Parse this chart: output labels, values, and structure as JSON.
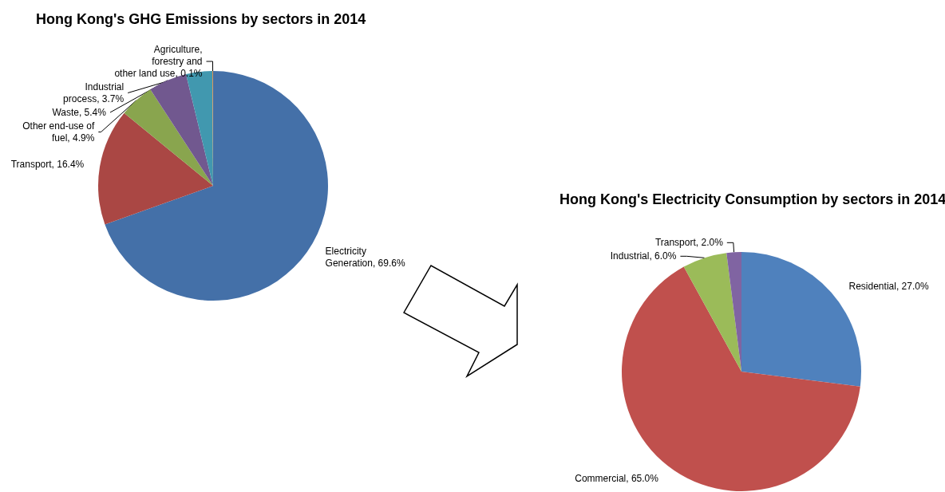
{
  "chart_data": [
    {
      "type": "pie",
      "title": "Hong Kong's GHG Emissions by sectors in 2014",
      "categories": [
        "Electricity Generation",
        "Transport",
        "Other end-use of fuel",
        "Waste",
        "Industrial process",
        "Agriculture, forestry and other land use"
      ],
      "values": [
        69.6,
        16.4,
        4.9,
        5.4,
        3.7,
        0.1
      ],
      "colors": [
        "#4470a8",
        "#aa4744",
        "#89a54e",
        "#71588f",
        "#4198af",
        "#db843d"
      ],
      "value_labels": [
        "69.6%",
        "16.4%",
        "4.9%",
        "5.4%",
        "3.7%",
        "0.1%"
      ],
      "legend": false
    },
    {
      "type": "pie",
      "title": "Hong Kong's Electricity Consumption by sectors in 2014",
      "categories": [
        "Residential",
        "Commercial",
        "Industrial",
        "Transport"
      ],
      "values": [
        27.0,
        65.0,
        6.0,
        2.0
      ],
      "colors": [
        "#4f81bd",
        "#c0504d",
        "#9bbb59",
        "#8064a2"
      ],
      "value_labels": [
        "27.0%",
        "65.0%",
        "6.0%",
        "2.0%"
      ],
      "legend": false
    }
  ]
}
